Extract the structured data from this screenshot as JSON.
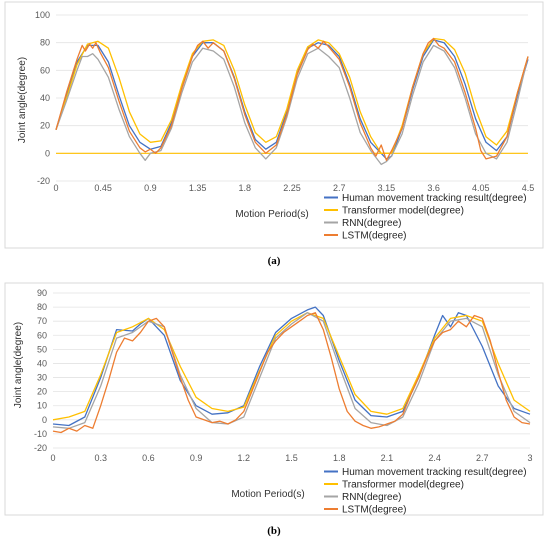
{
  "chart_data": [
    {
      "type": "line",
      "panel_label": "(a)",
      "xlabel": "Motion Period(s)",
      "ylabel": "Joint angle(degree)",
      "xlim": [
        0,
        4.5
      ],
      "ylim": [
        -20,
        100
      ],
      "x_ticks": [
        "0",
        "0.45",
        "0.9",
        "1.35",
        "1.8",
        "2.25",
        "2.7",
        "3.15",
        "3.6",
        "4.05",
        "4.5"
      ],
      "y_ticks": [
        "100",
        "80",
        "60",
        "40",
        "20",
        "0",
        "-20"
      ],
      "grid": "horizontal",
      "legend_position": "bottom-right",
      "series": [
        {
          "name": "Human movement tracking result(degree)",
          "color": "#4472C4",
          "x": [
            0,
            0.1,
            0.2,
            0.3,
            0.4,
            0.5,
            0.6,
            0.7,
            0.8,
            0.9,
            1.0,
            1.1,
            1.2,
            1.3,
            1.4,
            1.5,
            1.6,
            1.7,
            1.8,
            1.9,
            2.0,
            2.1,
            2.2,
            2.3,
            2.4,
            2.5,
            2.6,
            2.7,
            2.8,
            2.9,
            3.0,
            3.05,
            3.1,
            3.15,
            3.2,
            3.3,
            3.4,
            3.5,
            3.6,
            3.7,
            3.8,
            3.9,
            4.0,
            4.1,
            4.2,
            4.3,
            4.4,
            4.5
          ],
          "y": [
            17,
            42,
            66,
            78,
            78,
            66,
            42,
            20,
            8,
            3,
            5,
            22,
            48,
            70,
            80,
            80,
            74,
            55,
            30,
            10,
            3,
            8,
            30,
            58,
            76,
            80,
            78,
            70,
            50,
            25,
            8,
            4,
            0,
            -4,
            -2,
            18,
            46,
            70,
            82,
            80,
            70,
            50,
            25,
            8,
            2,
            12,
            42,
            68
          ]
        },
        {
          "name": "Transformer model(degree)",
          "color": "#FFC000",
          "x": [
            0,
            0.1,
            0.2,
            0.3,
            0.4,
            0.5,
            0.6,
            0.7,
            0.8,
            0.9,
            1.0,
            1.1,
            1.2,
            1.3,
            1.4,
            1.5,
            1.6,
            1.7,
            1.8,
            1.9,
            2.0,
            2.1,
            2.2,
            2.3,
            2.4,
            2.5,
            2.6,
            2.7,
            2.8,
            2.9,
            3.0,
            3.1,
            3.2,
            3.3,
            3.4,
            3.5,
            3.6,
            3.7,
            3.8,
            3.9,
            4.0,
            4.1,
            4.2,
            4.3,
            4.4,
            4.5
          ],
          "y": [
            17,
            40,
            64,
            79,
            81,
            76,
            55,
            30,
            14,
            8,
            9,
            24,
            50,
            72,
            81,
            82,
            78,
            60,
            35,
            15,
            8,
            12,
            32,
            60,
            77,
            82,
            80,
            72,
            55,
            30,
            12,
            0,
            0,
            20,
            48,
            72,
            83,
            82,
            75,
            58,
            32,
            12,
            6,
            16,
            44,
            70
          ],
          "baseline": 0
        },
        {
          "name": "RNN(degree)",
          "color": "#A5A5A5",
          "x": [
            0,
            0.1,
            0.2,
            0.25,
            0.3,
            0.35,
            0.4,
            0.5,
            0.6,
            0.7,
            0.8,
            0.85,
            0.9,
            1.0,
            1.1,
            1.2,
            1.3,
            1.4,
            1.5,
            1.6,
            1.7,
            1.8,
            1.9,
            2.0,
            2.1,
            2.2,
            2.3,
            2.4,
            2.5,
            2.6,
            2.7,
            2.8,
            2.9,
            3.0,
            3.1,
            3.15,
            3.2,
            3.3,
            3.4,
            3.5,
            3.6,
            3.7,
            3.8,
            3.9,
            4.0,
            4.1,
            4.2,
            4.3,
            4.4,
            4.5
          ],
          "y": [
            17,
            38,
            60,
            70,
            70,
            72,
            68,
            55,
            32,
            12,
            0,
            -5,
            0,
            2,
            18,
            44,
            66,
            76,
            74,
            68,
            48,
            22,
            4,
            -4,
            4,
            26,
            54,
            72,
            76,
            70,
            62,
            40,
            15,
            2,
            -8,
            -6,
            -2,
            14,
            42,
            66,
            78,
            74,
            62,
            40,
            14,
            0,
            -4,
            8,
            38,
            70
          ]
        },
        {
          "name": "LSTM(degree)",
          "color": "#ED7D31",
          "x": [
            0,
            0.1,
            0.2,
            0.25,
            0.28,
            0.32,
            0.35,
            0.38,
            0.42,
            0.5,
            0.6,
            0.7,
            0.8,
            0.85,
            0.9,
            0.95,
            1.0,
            1.1,
            1.2,
            1.3,
            1.35,
            1.4,
            1.45,
            1.5,
            1.6,
            1.7,
            1.8,
            1.9,
            2.0,
            2.1,
            2.2,
            2.3,
            2.4,
            2.45,
            2.5,
            2.55,
            2.6,
            2.7,
            2.8,
            2.9,
            3.0,
            3.05,
            3.1,
            3.15,
            3.2,
            3.3,
            3.4,
            3.5,
            3.55,
            3.6,
            3.65,
            3.7,
            3.8,
            3.9,
            4.0,
            4.05,
            4.1,
            4.2,
            4.3,
            4.4,
            4.5
          ],
          "y": [
            17,
            44,
            68,
            78,
            74,
            79,
            76,
            80,
            73,
            62,
            38,
            16,
            4,
            1,
            3,
            0,
            4,
            20,
            47,
            70,
            78,
            81,
            76,
            80,
            74,
            54,
            28,
            8,
            0,
            6,
            28,
            57,
            75,
            79,
            76,
            81,
            77,
            68,
            48,
            22,
            4,
            -2,
            6,
            -5,
            2,
            18,
            48,
            72,
            80,
            83,
            78,
            76,
            66,
            44,
            18,
            2,
            -4,
            -2,
            12,
            44,
            70
          ]
        }
      ]
    },
    {
      "type": "line",
      "panel_label": "(b)",
      "xlabel": "Motion Period(s)",
      "ylabel": "Joint angle(degree)",
      "xlim": [
        0,
        3
      ],
      "ylim": [
        -20,
        90
      ],
      "x_ticks": [
        "0",
        "0.3",
        "0.6",
        "0.9",
        "1.2",
        "1.5",
        "1.8",
        "2.1",
        "2.4",
        "2.7",
        "3"
      ],
      "y_ticks": [
        "90",
        "80",
        "70",
        "60",
        "50",
        "40",
        "30",
        "20",
        "10",
        "0",
        "-10",
        "-20"
      ],
      "grid": "horizontal",
      "legend_position": "bottom-right",
      "series": [
        {
          "name": "Human movement tracking result(degree)",
          "color": "#4472C4",
          "x": [
            0,
            0.1,
            0.2,
            0.3,
            0.4,
            0.5,
            0.55,
            0.6,
            0.7,
            0.8,
            0.9,
            1.0,
            1.1,
            1.2,
            1.3,
            1.4,
            1.5,
            1.6,
            1.65,
            1.7,
            1.8,
            1.9,
            2.0,
            2.1,
            2.2,
            2.3,
            2.4,
            2.45,
            2.5,
            2.55,
            2.6,
            2.7,
            2.8,
            2.9,
            3.0
          ],
          "y": [
            -3,
            -4,
            2,
            30,
            64,
            63,
            68,
            72,
            60,
            28,
            10,
            4,
            5,
            10,
            38,
            62,
            72,
            78,
            80,
            74,
            42,
            14,
            3,
            2,
            6,
            30,
            60,
            74,
            66,
            76,
            74,
            52,
            24,
            8,
            4
          ]
        },
        {
          "name": "Transformer model(degree)",
          "color": "#FFC000",
          "x": [
            0,
            0.1,
            0.2,
            0.3,
            0.4,
            0.5,
            0.6,
            0.7,
            0.8,
            0.9,
            1.0,
            1.1,
            1.2,
            1.3,
            1.4,
            1.5,
            1.6,
            1.7,
            1.8,
            1.9,
            2.0,
            2.1,
            2.2,
            2.3,
            2.4,
            2.5,
            2.6,
            2.7,
            2.8,
            2.9,
            3.0
          ],
          "y": [
            0,
            2,
            6,
            32,
            62,
            66,
            72,
            64,
            38,
            16,
            8,
            6,
            9,
            35,
            60,
            70,
            76,
            72,
            45,
            18,
            6,
            4,
            8,
            32,
            58,
            72,
            74,
            70,
            40,
            14,
            6
          ]
        },
        {
          "name": "RNN(degree)",
          "color": "#A5A5A5",
          "x": [
            0,
            0.1,
            0.2,
            0.3,
            0.4,
            0.5,
            0.6,
            0.7,
            0.8,
            0.9,
            1.0,
            1.1,
            1.2,
            1.3,
            1.4,
            1.5,
            1.6,
            1.7,
            1.8,
            1.9,
            2.0,
            2.1,
            2.2,
            2.3,
            2.4,
            2.5,
            2.6,
            2.7,
            2.8,
            2.9,
            3.0
          ],
          "y": [
            -5,
            -6,
            -2,
            24,
            58,
            62,
            70,
            66,
            32,
            8,
            -2,
            -3,
            2,
            30,
            58,
            68,
            76,
            70,
            38,
            8,
            -2,
            -4,
            2,
            26,
            56,
            70,
            72,
            66,
            32,
            6,
            -2
          ]
        },
        {
          "name": "LSTM(degree)",
          "color": "#ED7D31",
          "x": [
            0,
            0.05,
            0.1,
            0.15,
            0.2,
            0.25,
            0.3,
            0.35,
            0.4,
            0.45,
            0.5,
            0.55,
            0.6,
            0.65,
            0.7,
            0.75,
            0.8,
            0.85,
            0.9,
            0.95,
            1.0,
            1.05,
            1.1,
            1.15,
            1.2,
            1.25,
            1.3,
            1.35,
            1.4,
            1.45,
            1.5,
            1.55,
            1.6,
            1.65,
            1.7,
            1.75,
            1.8,
            1.85,
            1.9,
            1.95,
            2.0,
            2.05,
            2.1,
            2.15,
            2.2,
            2.25,
            2.3,
            2.35,
            2.4,
            2.45,
            2.5,
            2.55,
            2.6,
            2.65,
            2.7,
            2.75,
            2.8,
            2.85,
            2.9,
            2.95,
            3.0
          ],
          "y": [
            -8,
            -9,
            -6,
            -8,
            -4,
            -6,
            10,
            28,
            48,
            58,
            56,
            62,
            70,
            72,
            66,
            48,
            30,
            14,
            2,
            0,
            -2,
            -1,
            -3,
            0,
            6,
            20,
            34,
            48,
            56,
            62,
            66,
            70,
            74,
            76,
            64,
            44,
            22,
            6,
            -1,
            -4,
            -6,
            -5,
            -3,
            -1,
            4,
            18,
            30,
            44,
            56,
            62,
            64,
            70,
            66,
            74,
            72,
            56,
            34,
            14,
            2,
            -2,
            -3
          ]
        }
      ]
    }
  ]
}
